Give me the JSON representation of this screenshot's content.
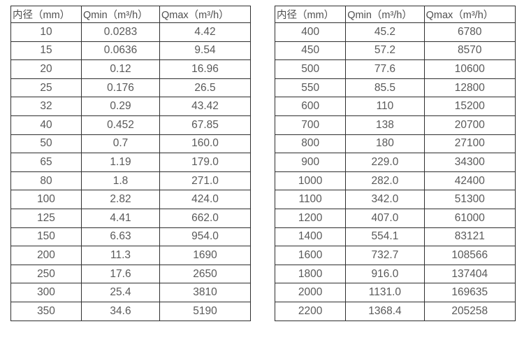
{
  "colors": {
    "background": "#ffffff",
    "border": "#2f2f2f",
    "header_text": "#4f4f4f",
    "cell_text": "#595959"
  },
  "chart_data": [
    {
      "type": "table",
      "columns": [
        "内径（mm）",
        "Qmin（m³/h）",
        "Qmax（m³/h）"
      ],
      "rows": [
        [
          "10",
          "0.0283",
          "4.42"
        ],
        [
          "15",
          "0.0636",
          "9.54"
        ],
        [
          "20",
          "0.12",
          "16.96"
        ],
        [
          "25",
          "0.176",
          "26.5"
        ],
        [
          "32",
          "0.29",
          "43.42"
        ],
        [
          "40",
          "0.452",
          "67.85"
        ],
        [
          "50",
          "0.7",
          "160.0"
        ],
        [
          "65",
          "1.19",
          "179.0"
        ],
        [
          "80",
          "1.8",
          "271.0"
        ],
        [
          "100",
          "2.82",
          "424.0"
        ],
        [
          "125",
          "4.41",
          "662.0"
        ],
        [
          "150",
          "6.63",
          "954.0"
        ],
        [
          "200",
          "11.3",
          "1690"
        ],
        [
          "250",
          "17.6",
          "2650"
        ],
        [
          "300",
          "25.4",
          "3810"
        ],
        [
          "350",
          "34.6",
          "5190"
        ]
      ]
    },
    {
      "type": "table",
      "columns": [
        "内径（mm）",
        "Qmin（m³/h）",
        "Qmax（m³/h）"
      ],
      "rows": [
        [
          "400",
          "45.2",
          "6780"
        ],
        [
          "450",
          "57.2",
          "8570"
        ],
        [
          "500",
          "77.6",
          "10600"
        ],
        [
          "550",
          "85.5",
          "12800"
        ],
        [
          "600",
          "110",
          "15200"
        ],
        [
          "700",
          "138",
          "20700"
        ],
        [
          "800",
          "180",
          "27100"
        ],
        [
          "900",
          "229.0",
          "34300"
        ],
        [
          "1000",
          "282.0",
          "42400"
        ],
        [
          "1100",
          "342.0",
          "51300"
        ],
        [
          "1200",
          "407.0",
          "61000"
        ],
        [
          "1400",
          "554.1",
          "83121"
        ],
        [
          "1600",
          "732.7",
          "108566"
        ],
        [
          "1800",
          "916.0",
          "137404"
        ],
        [
          "2000",
          "1131.0",
          "169635"
        ],
        [
          "2200",
          "1368.4",
          "205258"
        ]
      ]
    }
  ]
}
